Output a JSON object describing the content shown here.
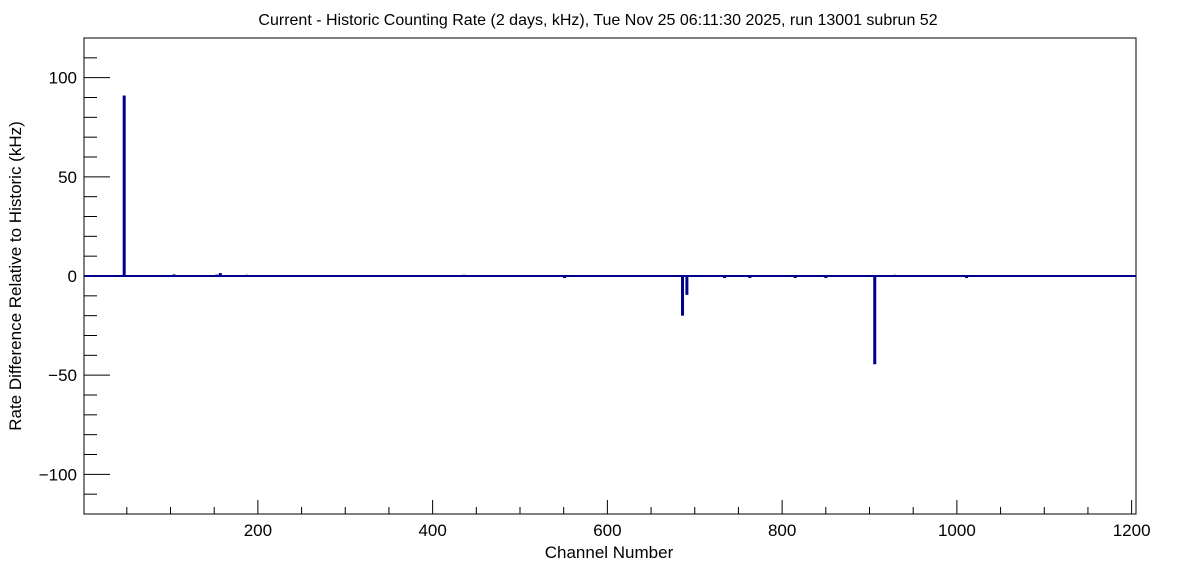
{
  "chart_data": {
    "type": "bar",
    "title": "Current - Historic Counting Rate (2 days, kHz), Tue Nov 25 06:11:30 2025, run 13001 subrun 52",
    "xlabel": "Channel Number",
    "ylabel": "Rate Difference Relative to Historic (kHz)",
    "xlim": [
      1,
      1205
    ],
    "ylim": [
      -120,
      120
    ],
    "x_ticks": [
      200,
      400,
      600,
      800,
      1000,
      1200
    ],
    "y_ticks": [
      -100,
      -50,
      0,
      50,
      100
    ],
    "x_tick_labels": [
      "200",
      "400",
      "600",
      "800",
      "1000",
      "1200"
    ],
    "y_tick_labels": [
      "−100",
      "−50",
      "0",
      "50",
      "100"
    ],
    "grid": false,
    "legend": "none",
    "series_color": "#00008b",
    "series": [
      {
        "x": [
          47,
          104,
          153,
          157,
          187,
          436,
          551,
          686,
          691,
          734,
          763,
          815,
          850,
          906,
          929,
          1011,
          1091
        ],
        "values": [
          91,
          0.8,
          0.7,
          1.5,
          0.6,
          0.6,
          -0.8,
          -20,
          -9.5,
          -0.8,
          -0.6,
          -0.7,
          -0.9,
          -44.5,
          0.6,
          -0.7,
          0.5
        ]
      }
    ]
  }
}
